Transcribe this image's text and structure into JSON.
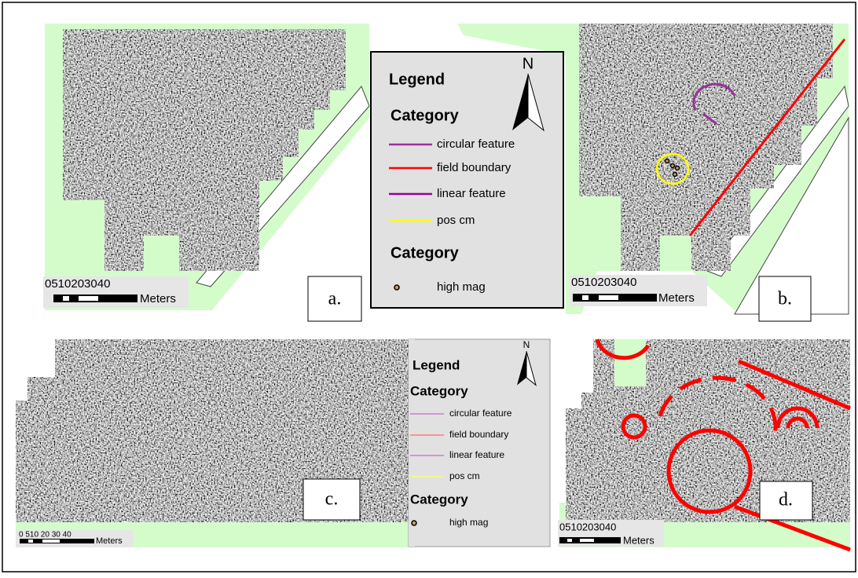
{
  "panels": [
    {
      "label": "a.",
      "scale_numbers": "0510203040",
      "scale_unit": "Meters"
    },
    {
      "label": "b.",
      "scale_numbers": "0510203040",
      "scale_unit": "Meters"
    },
    {
      "label": "c.",
      "scale_numbers": "0 510 20 30 40",
      "scale_unit": "Meters"
    },
    {
      "label": "d.",
      "scale_numbers": "0510203040",
      "scale_unit": "Meters"
    }
  ],
  "legends": [
    {
      "title": "Legend",
      "north": "N",
      "heading": "Category",
      "items": [
        {
          "label": "circular feature",
          "color": "#993399"
        },
        {
          "label": "field boundary",
          "color": "#ff0000"
        },
        {
          "label": "linear feature",
          "color": "#990099"
        },
        {
          "label": "pos cm",
          "color": "#ffff00"
        }
      ],
      "point_heading": "Category",
      "point_label": "high mag"
    },
    {
      "title": "Legend",
      "north": "N",
      "heading": "Category",
      "items": [
        {
          "label": "circular feature",
          "color": "#cc66cc"
        },
        {
          "label": "field boundary",
          "color": "#ff6666"
        },
        {
          "label": "linear feature",
          "color": "#cc66cc"
        },
        {
          "label": "pos cm",
          "color": "#ffff66"
        }
      ],
      "point_heading": "Category",
      "point_label": "high mag"
    }
  ]
}
